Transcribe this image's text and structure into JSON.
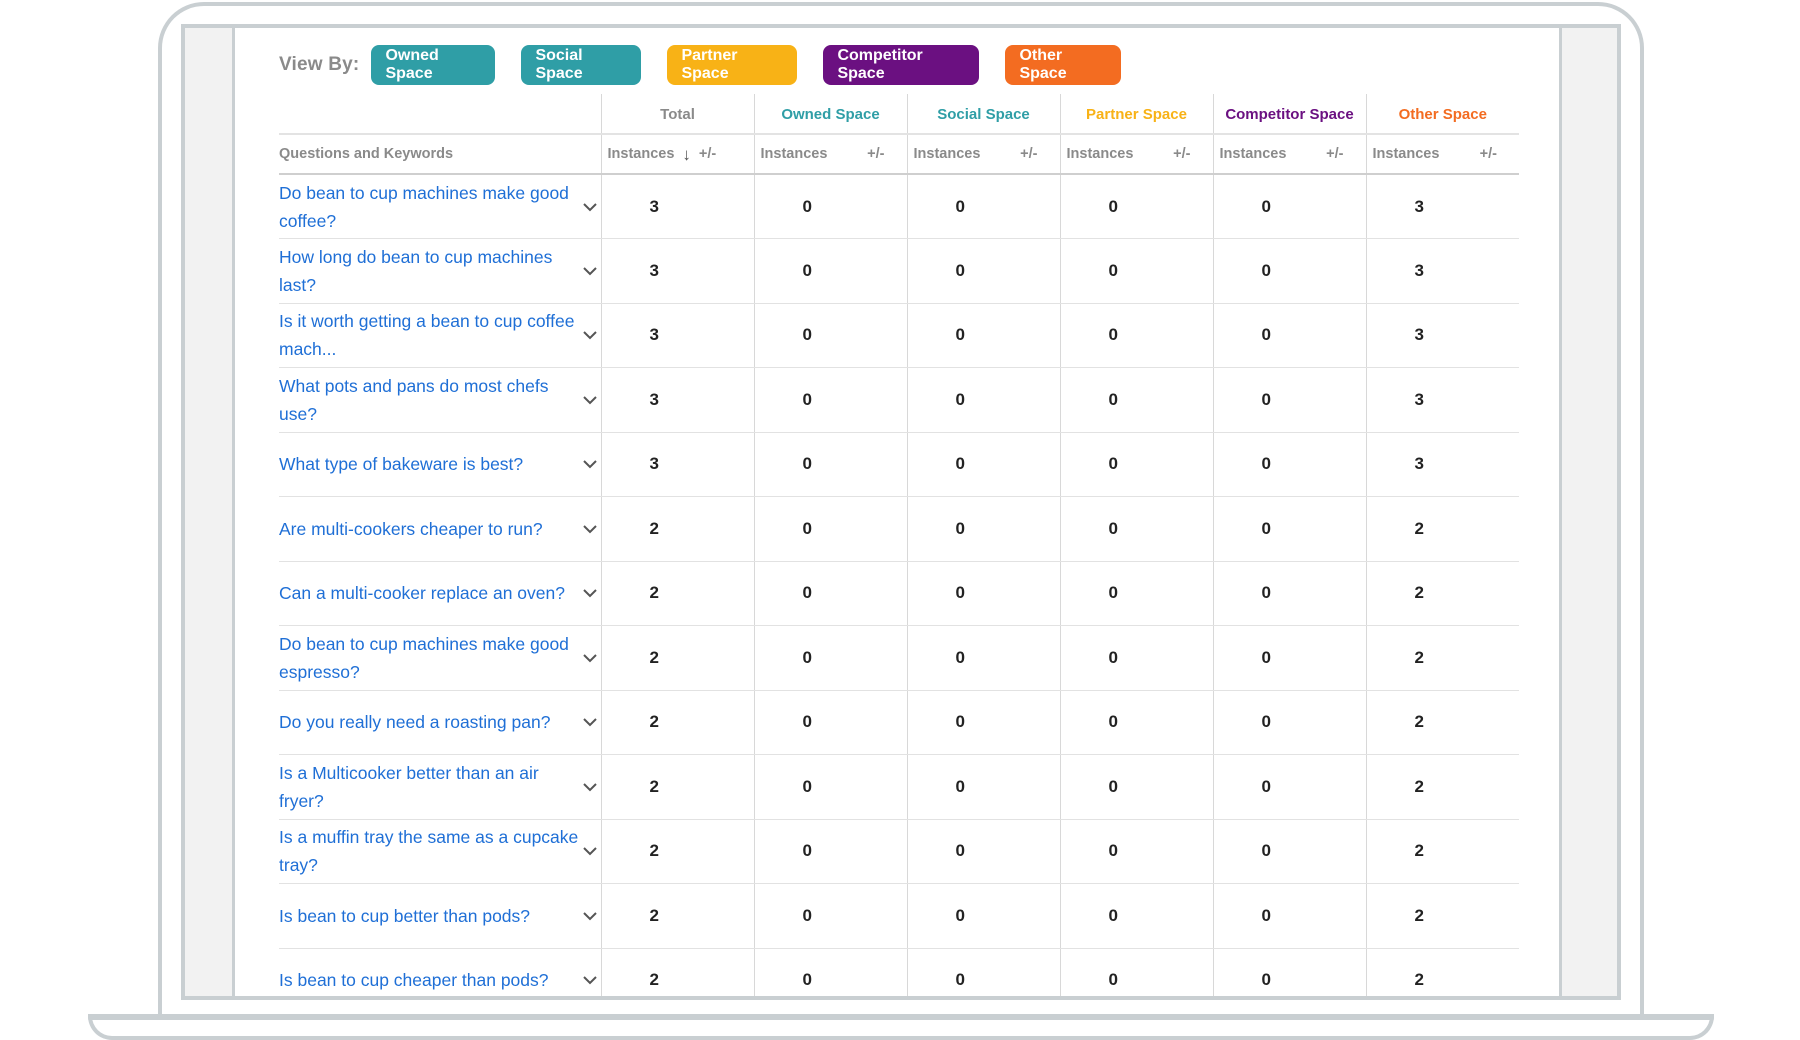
{
  "filters": {
    "view_by_label": "View By:",
    "chips": [
      "Owned Space",
      "Social Space",
      "Partner Space",
      "Competitor Space",
      "Other Space"
    ]
  },
  "table": {
    "group_headers": [
      {
        "label": "Total",
        "color": "#8a8a8a"
      },
      {
        "label": "Owned Space",
        "color": "#2f9ea6"
      },
      {
        "label": "Social Space",
        "color": "#2f9ea6"
      },
      {
        "label": "Partner Space",
        "color": "#f8b216"
      },
      {
        "label": "Competitor Space",
        "color": "#6b1081"
      },
      {
        "label": "Other Space",
        "color": "#f36c21"
      }
    ],
    "first_col_header": "Questions and Keywords",
    "sub_instances": "Instances",
    "sub_change": "+/-",
    "rows": [
      {
        "q": "Do bean to cup machines make good coffee?",
        "vals": [
          "3",
          "0",
          "0",
          "0",
          "0",
          "3"
        ]
      },
      {
        "q": "How long do bean to cup machines last?",
        "vals": [
          "3",
          "0",
          "0",
          "0",
          "0",
          "3"
        ]
      },
      {
        "q": "Is it worth getting a bean to cup coffee mach...",
        "vals": [
          "3",
          "0",
          "0",
          "0",
          "0",
          "3"
        ]
      },
      {
        "q": "What pots and pans do most chefs use?",
        "vals": [
          "3",
          "0",
          "0",
          "0",
          "0",
          "3"
        ]
      },
      {
        "q": "What type of bakeware is best?",
        "vals": [
          "3",
          "0",
          "0",
          "0",
          "0",
          "3"
        ]
      },
      {
        "q": "Are multi-cookers cheaper to run?",
        "vals": [
          "2",
          "0",
          "0",
          "0",
          "0",
          "2"
        ]
      },
      {
        "q": "Can a multi-cooker replace an oven?",
        "vals": [
          "2",
          "0",
          "0",
          "0",
          "0",
          "2"
        ]
      },
      {
        "q": "Do bean to cup machines make good espresso?",
        "vals": [
          "2",
          "0",
          "0",
          "0",
          "0",
          "2"
        ]
      },
      {
        "q": "Do you really need a roasting pan?",
        "vals": [
          "2",
          "0",
          "0",
          "0",
          "0",
          "2"
        ]
      },
      {
        "q": "Is a Multicooker better than an air fryer?",
        "vals": [
          "2",
          "0",
          "0",
          "0",
          "0",
          "2"
        ]
      },
      {
        "q": "Is a muffin tray the same as a cupcake tray?",
        "vals": [
          "2",
          "0",
          "0",
          "0",
          "0",
          "2"
        ]
      },
      {
        "q": "Is bean to cup better than pods?",
        "vals": [
          "2",
          "0",
          "0",
          "0",
          "0",
          "2"
        ]
      },
      {
        "q": "Is bean to cup cheaper than pods?",
        "vals": [
          "2",
          "0",
          "0",
          "0",
          "0",
          "2"
        ]
      }
    ]
  }
}
